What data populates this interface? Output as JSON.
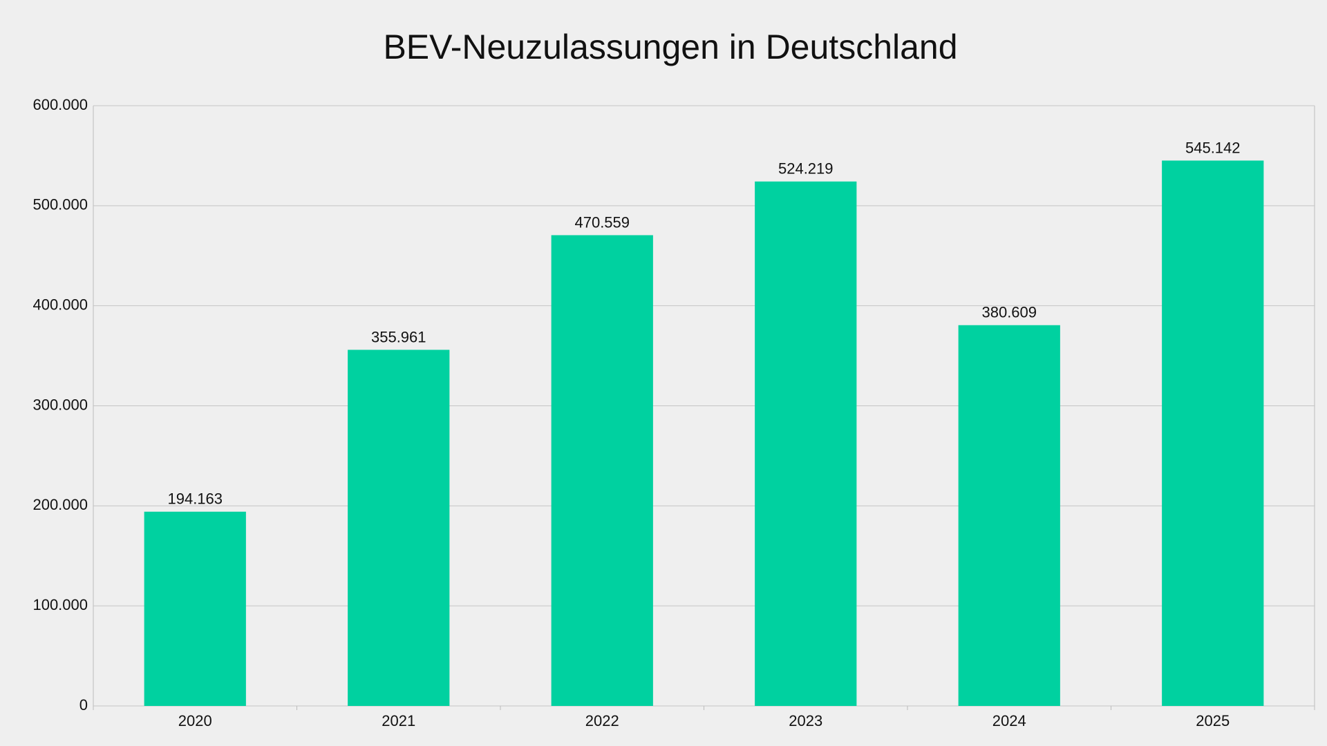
{
  "chart_data": {
    "type": "bar",
    "title": "BEV-Neuzulassungen in Deutschland",
    "categories": [
      "2020",
      "2021",
      "2022",
      "2023",
      "2024",
      "2025"
    ],
    "values": [
      194163,
      355961,
      470559,
      524219,
      380609,
      545142
    ],
    "value_labels": [
      "194.163",
      "355.961",
      "470.559",
      "524.219",
      "380.609",
      "545.142"
    ],
    "color": "#00d1a0",
    "ylim": [
      0,
      600000
    ],
    "yticks": [
      0,
      {
        "value": 100000,
        "label": "100.000"
      },
      {
        "value": 200000,
        "label": "200.000"
      },
      {
        "value": 300000,
        "label": "300.000"
      },
      {
        "value": 400000,
        "label": "400.000"
      },
      {
        "value": 500000,
        "label": "500.000"
      },
      {
        "value": 600000,
        "label": "600.000"
      }
    ],
    "grid": true
  }
}
